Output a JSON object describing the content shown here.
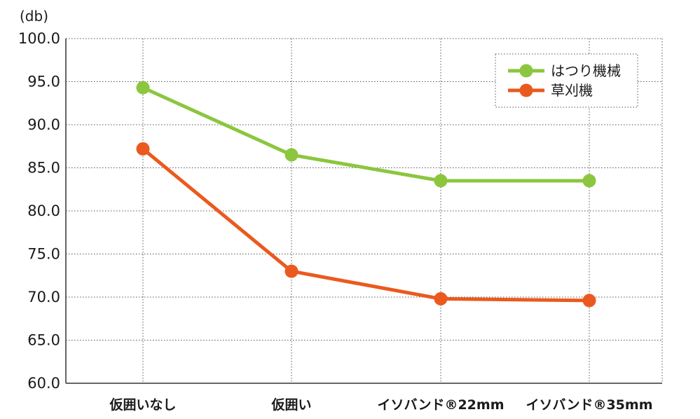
{
  "chart_data": {
    "type": "line",
    "unit_label": "(db)",
    "categories": [
      "仮囲いなし",
      "仮囲い",
      "イソバンド®22mm",
      "イソバンド®35mm"
    ],
    "ylim": [
      60,
      100
    ],
    "yticks": [
      60,
      65,
      70,
      75,
      80,
      85,
      90,
      95,
      100
    ],
    "ytick_labels": [
      "60.0",
      "65.0",
      "70.0",
      "75.0",
      "80.0",
      "85.0",
      "90.0",
      "95.0",
      "100.0"
    ],
    "grid": true,
    "legend_position": "top-right",
    "series": [
      {
        "name": "はつり機械",
        "color": "#8cc63f",
        "values": [
          94.3,
          86.5,
          83.5,
          83.5
        ]
      },
      {
        "name": "草刈機",
        "color": "#ea5a1e",
        "values": [
          87.2,
          73.0,
          69.8,
          69.6
        ]
      }
    ]
  }
}
